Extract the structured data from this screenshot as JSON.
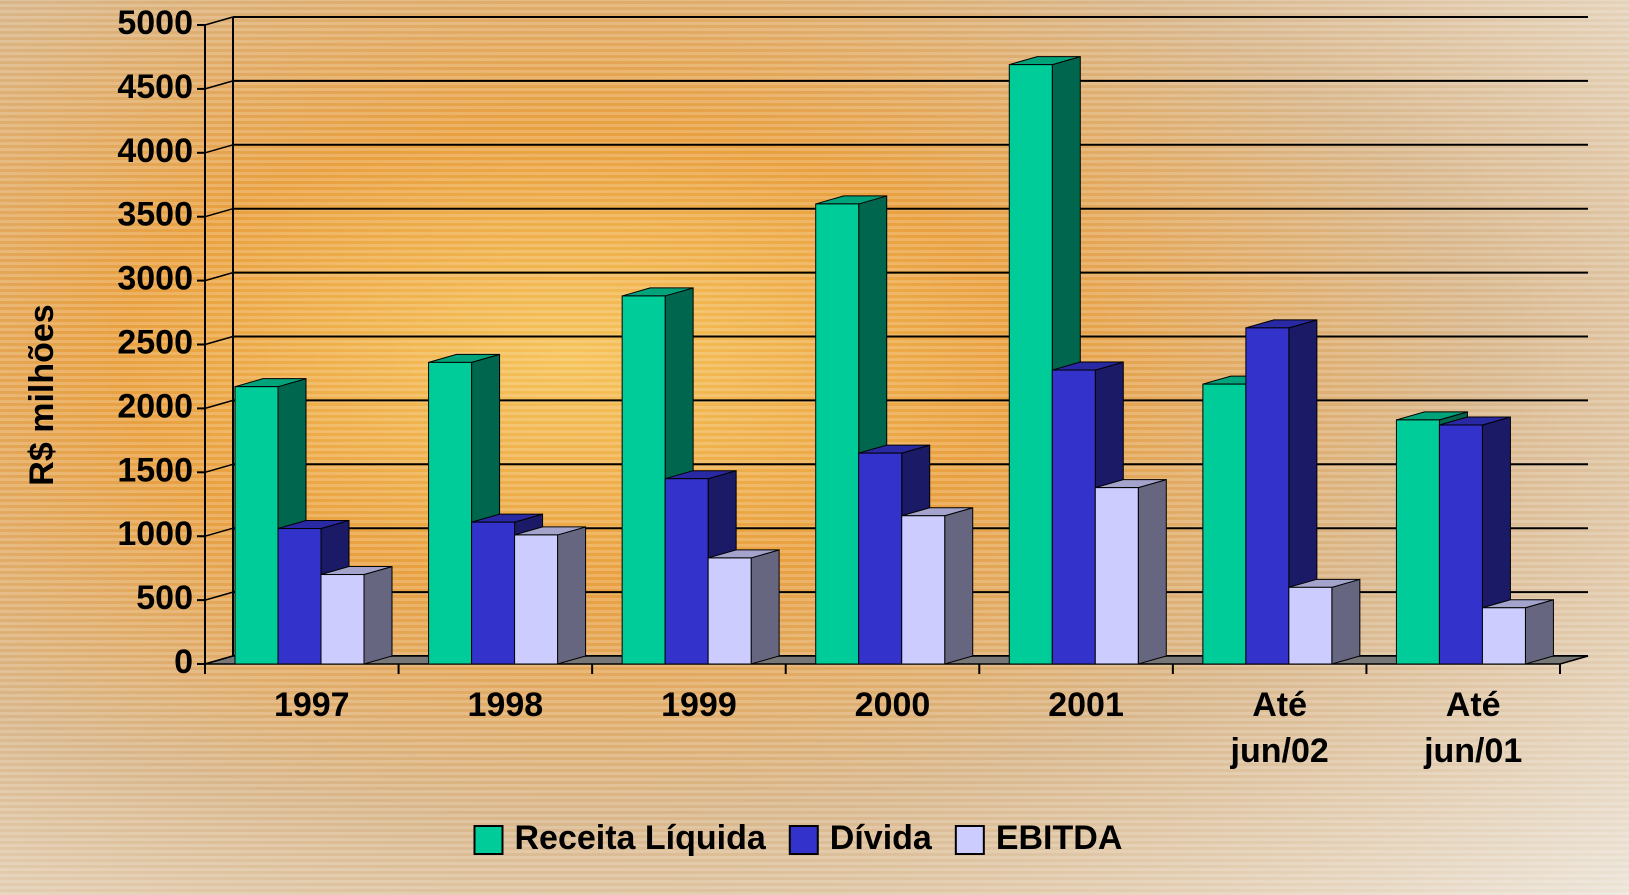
{
  "chart_data": {
    "type": "bar3d",
    "y_label": "R$ milhões",
    "categories": [
      "1997",
      "1998",
      "1999",
      "2000",
      "2001",
      "Até jun/02",
      "Até jun/01"
    ],
    "series": [
      {
        "name": "Receita Líquida",
        "color": "#00cc99",
        "values": [
          2170,
          2360,
          2880,
          3600,
          4690,
          2190,
          1910
        ]
      },
      {
        "name": "Dívida",
        "color": "#3333cc",
        "values": [
          1060,
          1110,
          1450,
          1650,
          2300,
          2630,
          1870
        ]
      },
      {
        "name": "EBITDA",
        "color": "#ccccff",
        "values": [
          700,
          1010,
          830,
          1160,
          1380,
          600,
          440
        ]
      }
    ],
    "ylim": [
      0,
      5000
    ],
    "yticks": [
      0,
      500,
      1000,
      1500,
      2000,
      2500,
      3000,
      3500,
      4000,
      4500,
      5000
    ],
    "grid": true,
    "legend": "bottom"
  }
}
